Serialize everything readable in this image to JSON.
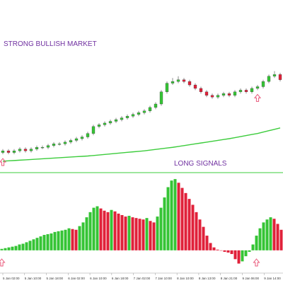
{
  "chart_data": [
    {
      "type": "candlestick",
      "annotations": [
        "STRONG BULLISH MARKET",
        "LONG SIGNALS"
      ],
      "open": [
        12,
        13,
        12,
        13,
        14,
        13,
        14,
        15,
        15,
        16,
        17,
        17,
        18,
        19,
        20,
        21,
        23,
        27,
        28,
        29,
        30,
        31,
        32,
        33,
        34,
        35,
        36,
        38,
        40,
        47,
        52,
        53,
        54,
        53,
        51,
        49,
        47,
        45,
        44,
        45,
        46,
        45,
        47,
        48,
        47,
        49,
        50,
        53,
        56,
        57
      ],
      "high": [
        14,
        14,
        14,
        15,
        15,
        15,
        16,
        16,
        17,
        18,
        18,
        19,
        20,
        21,
        22,
        24,
        28,
        29,
        30,
        31,
        32,
        33,
        34,
        35,
        36,
        37,
        39,
        41,
        48,
        53,
        55,
        56,
        55,
        54,
        52,
        50,
        48,
        46,
        46,
        47,
        47,
        48,
        49,
        49,
        50,
        51,
        54,
        57,
        59,
        58
      ],
      "low": [
        11,
        11,
        11,
        12,
        12,
        12,
        13,
        14,
        14,
        15,
        16,
        16,
        17,
        18,
        19,
        20,
        22,
        26,
        27,
        28,
        29,
        30,
        31,
        32,
        33,
        34,
        35,
        37,
        39,
        46,
        51,
        52,
        52,
        50,
        48,
        46,
        44,
        43,
        43,
        44,
        44,
        44,
        46,
        46,
        46,
        48,
        49,
        52,
        55,
        53
      ],
      "close": [
        13,
        12,
        13,
        14,
        13,
        14,
        15,
        15,
        16,
        17,
        17,
        18,
        19,
        20,
        21,
        23,
        27,
        28,
        29,
        30,
        31,
        32,
        33,
        34,
        35,
        36,
        38,
        40,
        47,
        52,
        53,
        54,
        53,
        51,
        49,
        47,
        45,
        44,
        45,
        46,
        45,
        47,
        48,
        47,
        49,
        50,
        53,
        56,
        57,
        54
      ],
      "up_color": "#35c435",
      "down_color": "#e0213a",
      "ma": {
        "color": "#3ccc3c",
        "values": [
          7,
          7.2,
          7.4,
          7.6,
          7.8,
          8,
          8.2,
          8.4,
          8.6,
          8.8,
          9,
          9.2,
          9.4,
          9.6,
          9.8,
          10,
          10.3,
          10.6,
          10.9,
          11.2,
          11.5,
          11.8,
          12.1,
          12.4,
          12.7,
          13,
          13.4,
          13.8,
          14.2,
          14.6,
          15,
          15.5,
          16,
          16.5,
          17,
          17.5,
          18,
          18.5,
          19,
          19.5,
          20,
          20.6,
          21.2,
          21.8,
          22.4,
          23,
          23.8,
          24.6,
          25.4,
          26.2
        ]
      },
      "signals": [
        0,
        45
      ],
      "signal_color": "#e8587a",
      "ylim": [
        0,
        100
      ]
    },
    {
      "type": "bar",
      "values": [
        2,
        3,
        4,
        5,
        6,
        8,
        9,
        11,
        13,
        15,
        17,
        19,
        21,
        22,
        23,
        25,
        26,
        27,
        28,
        30,
        29,
        28,
        33,
        38,
        45,
        52,
        58,
        60,
        57,
        54,
        52,
        55,
        53,
        50,
        48,
        46,
        47,
        45,
        44,
        43,
        42,
        44,
        40,
        38,
        46,
        58,
        72,
        86,
        95,
        97,
        92,
        85,
        78,
        70,
        62,
        52,
        42,
        32,
        20,
        10,
        4,
        1,
        0,
        -2,
        -3,
        -5,
        -12,
        -18,
        -15,
        -8,
        -2,
        8,
        20,
        30,
        38,
        42,
        45,
        43,
        36,
        28
      ],
      "up_color": "#35c435",
      "down_color": "#e0213a",
      "signals": [
        0,
        72
      ],
      "signal_color": "#e8587a",
      "ylim": [
        -30,
        100
      ],
      "x_labels": [
        "5 Jan 02:00",
        "5 Jan 10:00",
        "5 Jan 18:00",
        "6 Jan 02:00",
        "6 Jan 10:00",
        "6 Jan 18:00",
        "7 Jan 02:00",
        "7 Jan 10:00",
        "8 Jan 10:00",
        "8 Jan 13:00",
        "8 Jan 21:00",
        "9 Jan 06:00",
        "9 Jan 14:00"
      ]
    }
  ]
}
